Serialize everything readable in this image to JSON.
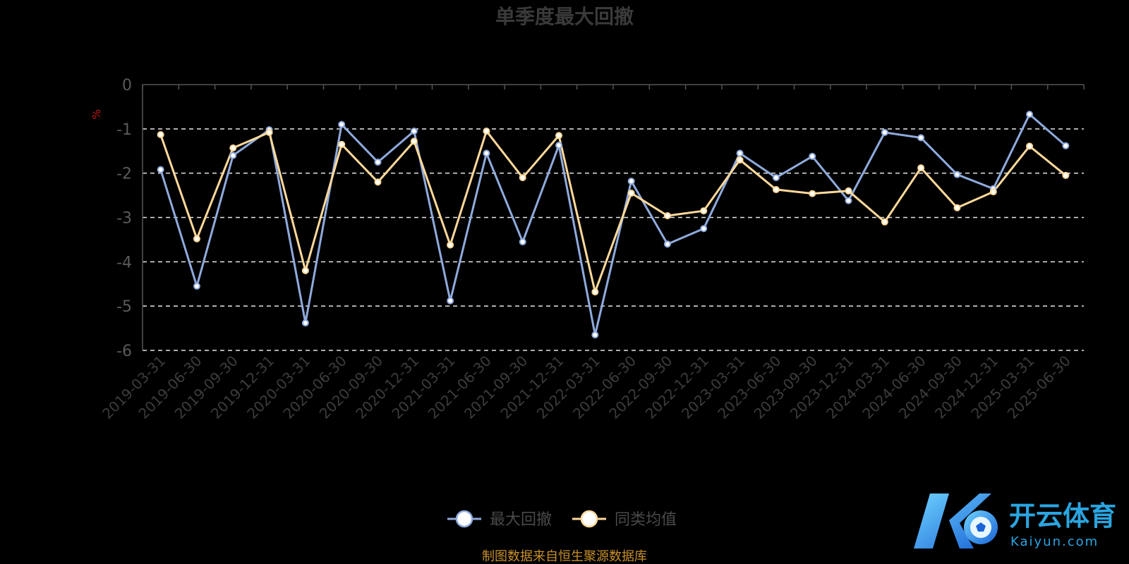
{
  "chart_data": {
    "type": "line",
    "title": "单季度最大回撤",
    "ylabel": "%",
    "ylim": [
      -6,
      0
    ],
    "yticks": [
      0,
      -1,
      -2,
      -3,
      -4,
      -5,
      -6
    ],
    "grid": true,
    "legend_position": "bottom",
    "categories": [
      "2019-03-31",
      "2019-06-30",
      "2019-09-30",
      "2019-12-31",
      "2020-03-31",
      "2020-06-30",
      "2020-09-30",
      "2020-12-31",
      "2021-03-31",
      "2021-06-30",
      "2021-09-30",
      "2021-12-31",
      "2022-03-31",
      "2022-06-30",
      "2022-09-30",
      "2022-12-31",
      "2023-03-31",
      "2023-06-30",
      "2023-09-30",
      "2023-12-31",
      "2024-03-31",
      "2024-06-30",
      "2024-09-30",
      "2024-12-31",
      "2025-03-31",
      "2025-06-30"
    ],
    "series": [
      {
        "name": "最大回撤",
        "color": "#8faadc",
        "values": [
          -1.92,
          -4.55,
          -1.6,
          -1.02,
          -5.38,
          -0.9,
          -1.75,
          -1.05,
          -4.88,
          -1.55,
          -3.55,
          -1.37,
          -5.65,
          -2.18,
          -3.6,
          -3.25,
          -1.55,
          -2.1,
          -1.62,
          -2.62,
          -1.08,
          -1.2,
          -2.03,
          -2.35,
          -0.67,
          -1.38
        ]
      },
      {
        "name": "同类均值",
        "color": "#ffd99a",
        "values": [
          -1.13,
          -3.48,
          -1.43,
          -1.08,
          -4.2,
          -1.35,
          -2.2,
          -1.28,
          -3.62,
          -1.05,
          -2.1,
          -1.15,
          -4.68,
          -2.45,
          -2.96,
          -2.85,
          -1.7,
          -2.37,
          -2.46,
          -2.4,
          -3.1,
          -1.88,
          -2.78,
          -2.42,
          -1.39,
          -2.05
        ]
      }
    ]
  },
  "footer": {
    "source": "制图数据来自恒生聚源数据库"
  },
  "watermark": {
    "brand": "开云体育",
    "site": "Kaiyun.com"
  }
}
